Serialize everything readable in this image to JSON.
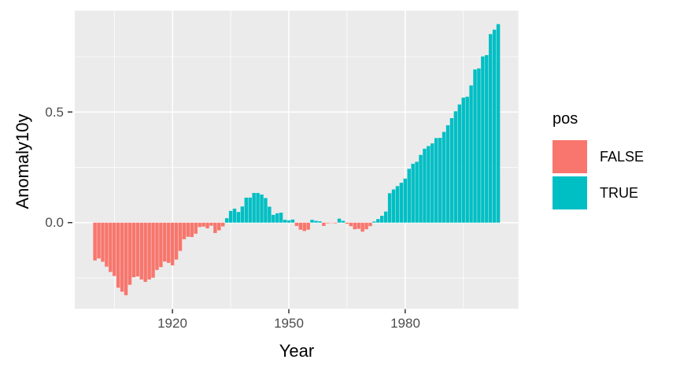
{
  "chart_data": {
    "type": "bar",
    "title": "",
    "xlabel": "Year",
    "ylabel": "Anomaly10y",
    "x_domain": [
      1894.8,
      2009.2
    ],
    "y_domain": [
      -0.389,
      0.958
    ],
    "grid": true,
    "x_ticks": [
      {
        "value": 1920,
        "label": "1920"
      },
      {
        "value": 1950,
        "label": "1950"
      },
      {
        "value": 1980,
        "label": "1980"
      }
    ],
    "x_minor_ticks": [
      1905,
      1935,
      1965,
      1995
    ],
    "y_ticks": [
      {
        "value": 0.0,
        "label": "0.0"
      },
      {
        "value": 0.5,
        "label": "0.5"
      }
    ],
    "y_minor_ticks": [
      -0.25,
      0.25,
      0.75
    ],
    "legend": {
      "title": "pos",
      "position": "right",
      "entries": [
        {
          "label": "FALSE",
          "color": "#F8766D"
        },
        {
          "label": "TRUE",
          "color": "#00BFC4"
        }
      ]
    },
    "bar_width_x_units": 0.9,
    "series": {
      "name": "Anomaly10y by Year (fill = pos)",
      "years": [
        1900,
        1901,
        1902,
        1903,
        1904,
        1905,
        1906,
        1907,
        1908,
        1909,
        1910,
        1911,
        1912,
        1913,
        1914,
        1915,
        1916,
        1917,
        1918,
        1919,
        1920,
        1921,
        1922,
        1923,
        1924,
        1925,
        1926,
        1927,
        1928,
        1929,
        1930,
        1931,
        1932,
        1933,
        1934,
        1935,
        1936,
        1937,
        1938,
        1939,
        1940,
        1941,
        1942,
        1943,
        1944,
        1945,
        1946,
        1947,
        1948,
        1949,
        1950,
        1951,
        1952,
        1953,
        1954,
        1955,
        1956,
        1957,
        1958,
        1959,
        1960,
        1961,
        1962,
        1963,
        1964,
        1965,
        1966,
        1967,
        1968,
        1969,
        1970,
        1971,
        1972,
        1973,
        1974,
        1975,
        1976,
        1977,
        1978,
        1979,
        1980,
        1981,
        1982,
        1983,
        1984,
        1985,
        1986,
        1987,
        1988,
        1989,
        1990,
        1991,
        1992,
        1993,
        1994,
        1995,
        1996,
        1997,
        1998,
        1999,
        2000,
        2001,
        2002,
        2003,
        2004
      ],
      "values": [
        -0.171,
        -0.162,
        -0.177,
        -0.199,
        -0.223,
        -0.241,
        -0.294,
        -0.312,
        -0.328,
        -0.281,
        -0.247,
        -0.243,
        -0.257,
        -0.268,
        -0.257,
        -0.249,
        -0.214,
        -0.201,
        -0.176,
        -0.182,
        -0.193,
        -0.167,
        -0.128,
        -0.075,
        -0.064,
        -0.065,
        -0.05,
        -0.02,
        -0.018,
        -0.026,
        -0.014,
        -0.047,
        -0.035,
        -0.017,
        0.02,
        0.053,
        0.063,
        0.048,
        0.073,
        0.113,
        0.113,
        0.134,
        0.134,
        0.127,
        0.111,
        0.072,
        0.035,
        0.042,
        0.045,
        0.013,
        0.01,
        0.014,
        -0.015,
        -0.032,
        -0.038,
        -0.032,
        0.013,
        0.008,
        0.006,
        -0.015,
        -0.003,
        -0.002,
        -0.003,
        0.018,
        0.008,
        -0.005,
        -0.016,
        -0.03,
        -0.028,
        -0.041,
        -0.03,
        -0.016,
        0.005,
        0.016,
        0.031,
        0.05,
        0.133,
        0.15,
        0.165,
        0.18,
        0.199,
        0.243,
        0.266,
        0.275,
        0.306,
        0.334,
        0.346,
        0.358,
        0.382,
        0.383,
        0.41,
        0.44,
        0.472,
        0.503,
        0.534,
        0.565,
        0.569,
        0.62,
        0.692,
        0.697,
        0.751,
        0.757,
        0.852,
        0.872,
        0.897
      ]
    },
    "colors": {
      "panel_background": "#EBEBEB",
      "gridline": "#FFFFFF",
      "tick_mark": "#333333",
      "tick_label": "#4D4D4D",
      "axis_title": "#000000",
      "negative_fill": "#F8766D",
      "positive_fill": "#00BFC4"
    }
  }
}
